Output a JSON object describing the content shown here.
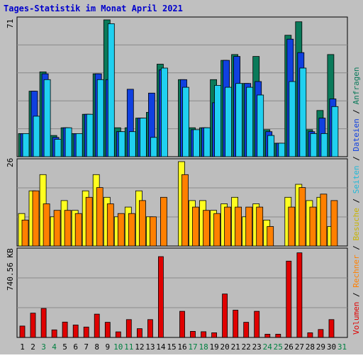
{
  "title": "Tages-Statistik im Monat April 2021",
  "colors": {
    "outer_bg": "#C0C0C0",
    "plot_bg": "#BDBDBD",
    "title_text": "#0000CC",
    "anfragen": "#0A7A5A",
    "dateien": "#1040E0",
    "seiten": "#20D0F0",
    "besuche": "#FFFF20",
    "rechner": "#FF8000",
    "volumen": "#E00000",
    "weekend_label": "#008040",
    "weekday_label": "#000000"
  },
  "right_legend": [
    {
      "text": "Volumen",
      "color": "#E00000"
    },
    {
      "text": " / ",
      "color": "#000000"
    },
    {
      "text": "Rechner",
      "color": "#FF8000"
    },
    {
      "text": " / ",
      "color": "#000000"
    },
    {
      "text": "Besuche",
      "color": "#C8B400"
    },
    {
      "text": " / ",
      "color": "#000000"
    },
    {
      "text": "Seiten",
      "color": "#20B8D8"
    },
    {
      "text": " / ",
      "color": "#000000"
    },
    {
      "text": "Dateien",
      "color": "#1040E0"
    },
    {
      "text": " / ",
      "color": "#000000"
    },
    {
      "text": "Anfragen",
      "color": "#0A7A5A"
    }
  ],
  "chart_data": [
    {
      "type": "bar",
      "ylabel": "71",
      "ylim": [
        0,
        71
      ],
      "grid": true,
      "categories": [
        "1",
        "2",
        "3",
        "4",
        "5",
        "6",
        "7",
        "8",
        "9",
        "10",
        "11",
        "12",
        "13",
        "14",
        "15",
        "16",
        "17",
        "18",
        "19",
        "20",
        "21",
        "22",
        "23",
        "24",
        "25",
        "26",
        "27",
        "28",
        "29",
        "30",
        "31"
      ],
      "series": [
        {
          "name": "Anfragen",
          "values": [
            12,
            34,
            44,
            11,
            15,
            12,
            22,
            43,
            71,
            15,
            15,
            20,
            23,
            48,
            0,
            40,
            15,
            15,
            40,
            50,
            53,
            38,
            52,
            14,
            7,
            63,
            70,
            14,
            24,
            53,
            0
          ]
        },
        {
          "name": "Dateien",
          "values": [
            12,
            34,
            43,
            10,
            15,
            12,
            22,
            43,
            40,
            13,
            35,
            20,
            33,
            45,
            0,
            40,
            14,
            15,
            28,
            50,
            52,
            38,
            39,
            13,
            7,
            61,
            54,
            13,
            20,
            30,
            0
          ]
        },
        {
          "name": "Seiten",
          "values": [
            12,
            21,
            40,
            9,
            15,
            12,
            22,
            40,
            69,
            13,
            13,
            20,
            10,
            46,
            0,
            36,
            14,
            15,
            37,
            36,
            38,
            36,
            32,
            11,
            7,
            39,
            46,
            12,
            12,
            26,
            0
          ]
        }
      ]
    },
    {
      "type": "bar",
      "ylabel": "26",
      "ylim": [
        0,
        26
      ],
      "grid": true,
      "categories": [
        "1",
        "2",
        "3",
        "4",
        "5",
        "6",
        "7",
        "8",
        "9",
        "10",
        "11",
        "12",
        "13",
        "14",
        "15",
        "16",
        "17",
        "18",
        "19",
        "20",
        "21",
        "22",
        "23",
        "24",
        "25",
        "26",
        "27",
        "28",
        "29",
        "30",
        "31"
      ],
      "series": [
        {
          "name": "Besuche",
          "values": [
            10,
            17,
            22,
            9,
            14,
            11,
            17,
            22,
            15,
            9,
            12,
            17,
            9,
            0,
            0,
            26,
            14,
            14,
            11,
            13,
            15,
            9,
            13,
            8,
            0,
            15,
            19,
            14,
            15,
            6,
            0
          ]
        },
        {
          "name": "Rechner",
          "values": [
            8,
            17,
            13,
            11,
            11,
            10,
            15,
            18,
            13,
            10,
            10,
            14,
            9,
            15,
            0,
            22,
            12,
            11,
            10,
            12,
            12,
            12,
            12,
            6,
            0,
            12,
            18,
            12,
            16,
            14,
            0
          ]
        }
      ]
    },
    {
      "type": "bar",
      "ylabel": "740.56 KB",
      "ylim": [
        0,
        740.56
      ],
      "grid": true,
      "categories": [
        "1",
        "2",
        "3",
        "4",
        "5",
        "6",
        "7",
        "8",
        "9",
        "10",
        "11",
        "12",
        "13",
        "14",
        "15",
        "16",
        "17",
        "18",
        "19",
        "20",
        "21",
        "22",
        "23",
        "24",
        "25",
        "26",
        "27",
        "28",
        "29",
        "30",
        "31"
      ],
      "series": [
        {
          "name": "Volumen",
          "values": [
            98,
            208,
            248,
            65,
            132,
            107,
            89,
            200,
            130,
            48,
            153,
            75,
            153,
            692,
            0,
            224,
            52,
            49,
            40,
            372,
            234,
            130,
            224,
            28,
            28,
            654,
            725,
            40,
            68,
            153,
            0
          ]
        }
      ]
    }
  ],
  "day_labels": [
    {
      "label": "1",
      "weekend": false
    },
    {
      "label": "2",
      "weekend": false
    },
    {
      "label": "3",
      "weekend": true
    },
    {
      "label": "4",
      "weekend": true
    },
    {
      "label": "5",
      "weekend": false
    },
    {
      "label": "6",
      "weekend": false
    },
    {
      "label": "7",
      "weekend": false
    },
    {
      "label": "8",
      "weekend": false
    },
    {
      "label": "9",
      "weekend": false
    },
    {
      "label": "10",
      "weekend": true
    },
    {
      "label": "11",
      "weekend": true
    },
    {
      "label": "12",
      "weekend": false
    },
    {
      "label": "13",
      "weekend": false
    },
    {
      "label": "14",
      "weekend": false
    },
    {
      "label": "15",
      "weekend": false
    },
    {
      "label": "16",
      "weekend": false
    },
    {
      "label": "17",
      "weekend": true
    },
    {
      "label": "18",
      "weekend": true
    },
    {
      "label": "19",
      "weekend": false
    },
    {
      "label": "20",
      "weekend": false
    },
    {
      "label": "21",
      "weekend": false
    },
    {
      "label": "22",
      "weekend": false
    },
    {
      "label": "23",
      "weekend": false
    },
    {
      "label": "24",
      "weekend": true
    },
    {
      "label": "25",
      "weekend": true
    },
    {
      "label": "26",
      "weekend": false
    },
    {
      "label": "27",
      "weekend": false
    },
    {
      "label": "28",
      "weekend": false
    },
    {
      "label": "29",
      "weekend": false
    },
    {
      "label": "30",
      "weekend": false
    },
    {
      "label": "31",
      "weekend": true
    }
  ]
}
